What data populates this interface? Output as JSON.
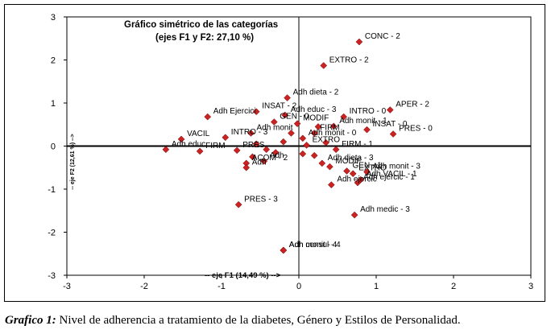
{
  "chart_data": {
    "type": "scatter",
    "title": "Gráfico simétrico de las categorías",
    "subtitle": "(ejes F1 y F2: 27,10 %)",
    "xlabel": "-- eje F1 (14,49 %) -->",
    "ylabel": "-- eje F2 (12,61 %) -->",
    "xlim": [
      -3,
      3
    ],
    "ylim": [
      -3,
      3
    ],
    "xticks": [
      "-3",
      "-2",
      "-1",
      "0",
      "1",
      "2",
      "3"
    ],
    "yticks": [
      "-3",
      "-2",
      "-1",
      "0",
      "1",
      "2",
      "3"
    ],
    "marker_color": "#cc2222",
    "points": [
      {
        "x": 0.78,
        "y": 2.42,
        "label": "CONC - 2"
      },
      {
        "x": 0.32,
        "y": 1.87,
        "label": "EXTRO - 2"
      },
      {
        "x": -0.15,
        "y": 1.12,
        "label": "Adh dieta - 2"
      },
      {
        "x": 1.18,
        "y": 0.84,
        "label": "APER - 2"
      },
      {
        "x": -0.55,
        "y": 0.8,
        "label": "INSAT - 2"
      },
      {
        "x": -1.18,
        "y": 0.68,
        "label": "Adh Ejercici"
      },
      {
        "x": -0.18,
        "y": 0.72,
        "label": "Adh educ - 3"
      },
      {
        "x": 0.58,
        "y": 0.68,
        "label": "INTRO - 0"
      },
      {
        "x": -0.32,
        "y": 0.56,
        "label": "GEN - 0"
      },
      {
        "x": -0.02,
        "y": 0.52,
        "label": "MODIF"
      },
      {
        "x": 0.45,
        "y": 0.46,
        "label": "Adh monit - 1"
      },
      {
        "x": 0.88,
        "y": 0.38,
        "label": "INSAT - 0"
      },
      {
        "x": 1.22,
        "y": 0.28,
        "label": "PRES - 0"
      },
      {
        "x": -0.62,
        "y": 0.3,
        "label": "Adh monit"
      },
      {
        "x": -1.52,
        "y": 0.16,
        "label": "VACIL"
      },
      {
        "x": -0.95,
        "y": 0.2,
        "label": "INTRO - 3"
      },
      {
        "x": -1.72,
        "y": -0.08,
        "label": "Adh educ"
      },
      {
        "x": -0.8,
        "y": -0.1,
        "label": "PRES"
      },
      {
        "x": -1.28,
        "y": -0.12,
        "label": "FIRM"
      },
      {
        "x": 0.48,
        "y": -0.08,
        "label": "FIRM - 1"
      },
      {
        "x": 0.05,
        "y": 0.18,
        "label": "Adh monit - 0"
      },
      {
        "x": 0.3,
        "y": -0.4,
        "label": "Adh dieta - 3"
      },
      {
        "x": 0.4,
        "y": -0.48,
        "label": "MODIF"
      },
      {
        "x": 0.62,
        "y": -0.58,
        "label": "GEN - 1"
      },
      {
        "x": 0.7,
        "y": -0.64,
        "label": "EXTRO"
      },
      {
        "x": 0.88,
        "y": -0.6,
        "label": "Adh monit - 3"
      },
      {
        "x": 0.8,
        "y": -0.78,
        "label": "Adh VACIL - 1"
      },
      {
        "x": 0.76,
        "y": -0.85,
        "label": "Adh ejercic - 1"
      },
      {
        "x": 0.42,
        "y": -0.9,
        "label": "Adh ejercic"
      },
      {
        "x": -0.68,
        "y": -0.4,
        "label": "ACOM - 2"
      },
      {
        "x": -0.68,
        "y": -0.5,
        "label": "Adh"
      },
      {
        "x": -0.45,
        "y": -0.35,
        "label": "Adh"
      },
      {
        "x": -0.78,
        "y": -1.36,
        "label": "PRES - 3"
      },
      {
        "x": 0.72,
        "y": -1.6,
        "label": "Adh medic - 3"
      },
      {
        "x": -0.2,
        "y": -2.42,
        "label": "Adh consul - 4"
      },
      {
        "x": -0.2,
        "y": -2.42,
        "label": "Adh monit - 4"
      },
      {
        "x": 0.1,
        "y": 0.02,
        "label": "EXTRO"
      },
      {
        "x": 0.2,
        "y": 0.3,
        "label": "FIRM"
      },
      {
        "x": -0.1,
        "y": 0.3,
        "label": ""
      },
      {
        "x": 0.05,
        "y": -0.18,
        "label": ""
      },
      {
        "x": -0.55,
        "y": 0.05,
        "label": ""
      },
      {
        "x": -0.42,
        "y": -0.08,
        "label": ""
      },
      {
        "x": -0.3,
        "y": -0.15,
        "label": ""
      },
      {
        "x": 0.2,
        "y": -0.22,
        "label": ""
      },
      {
        "x": 0.35,
        "y": 0.08,
        "label": ""
      },
      {
        "x": -0.2,
        "y": 0.1,
        "label": ""
      },
      {
        "x": 0.25,
        "y": 0.45,
        "label": ""
      },
      {
        "x": -0.6,
        "y": -0.25,
        "label": ""
      }
    ]
  },
  "caption": {
    "prefix": "Grafico 1:",
    "text": " Nivel de adherencia a tratamiento de la diabetes, Género y Estilos de Personalidad."
  }
}
